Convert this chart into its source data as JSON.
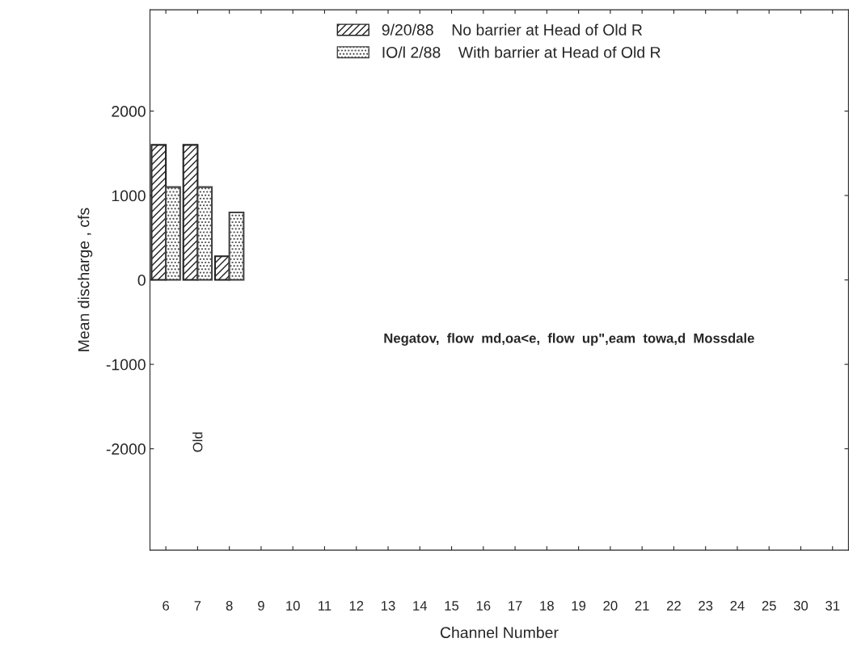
{
  "chart_data": {
    "type": "bar",
    "categories": [
      "6",
      "7",
      "8",
      "9",
      "10",
      "11",
      "12",
      "13",
      "14",
      "15",
      "16",
      "17",
      "18",
      "19",
      "20",
      "21",
      "22",
      "23",
      "24",
      "25",
      "30",
      "31"
    ],
    "series": [
      {
        "name": "9/20/88    No barrier at Head of Old R",
        "color": "#222222",
        "values": [
          1600,
          1600,
          280,
          null,
          null,
          null,
          null,
          null,
          null,
          null,
          null,
          null,
          null,
          null,
          null,
          null,
          null,
          null,
          null,
          null,
          null,
          null
        ]
      },
      {
        "name": "IO/l 2/88    With barrier at Head of Old R",
        "color": "#444444",
        "values": [
          1100,
          1100,
          800,
          null,
          null,
          null,
          null,
          null,
          null,
          null,
          null,
          null,
          null,
          null,
          null,
          null,
          null,
          null,
          null,
          null,
          null,
          null
        ]
      }
    ],
    "xlabel": "Channel Number",
    "ylabel": "Mean discharge , cfs",
    "ylim": [
      -3200,
      3200
    ],
    "yticks": [
      -2000,
      -1000,
      0,
      1000,
      2000
    ],
    "annotations": [
      "Negatov,  flow  md,oa<e,  flow  up\",eam  towa,d  Mossdale",
      "Old"
    ],
    "legend": "top",
    "grid": false
  }
}
